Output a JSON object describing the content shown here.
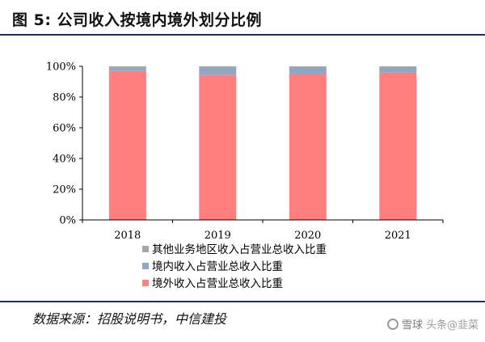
{
  "figure": {
    "title": "图 5: 公司收入按境内境外划分比例",
    "source": "数据来源：招股说明书，中信建投"
  },
  "watermark": {
    "text_left": "雪球",
    "text_right": "头条@韭菜"
  },
  "colors": {
    "other": "#a6a6a6",
    "domestic": "#8ea8c3",
    "overseas": "#ff7f7f",
    "axis": "#000000",
    "rule": "#1f2d5c"
  },
  "chart_data": {
    "type": "bar",
    "stacked": true,
    "categories": [
      "2018",
      "2019",
      "2020",
      "2021"
    ],
    "series": [
      {
        "name": "境外收入占营业总收入比重",
        "values": [
          97,
          94.5,
          95,
          96
        ],
        "color": "#ff7f7f"
      },
      {
        "name": "境内收入占营业总收入比重",
        "values": [
          2,
          5,
          4.5,
          3.5
        ],
        "color": "#8ea8c3"
      },
      {
        "name": "其他业务地区收入占营业总收入比重",
        "values": [
          1,
          0.5,
          0.5,
          0.5
        ],
        "color": "#a6a6a6"
      }
    ],
    "y_ticks": [
      "0%",
      "20%",
      "40%",
      "60%",
      "80%",
      "100%"
    ],
    "ylim": [
      0,
      100
    ],
    "grid": false,
    "legend_position": "bottom-center"
  }
}
